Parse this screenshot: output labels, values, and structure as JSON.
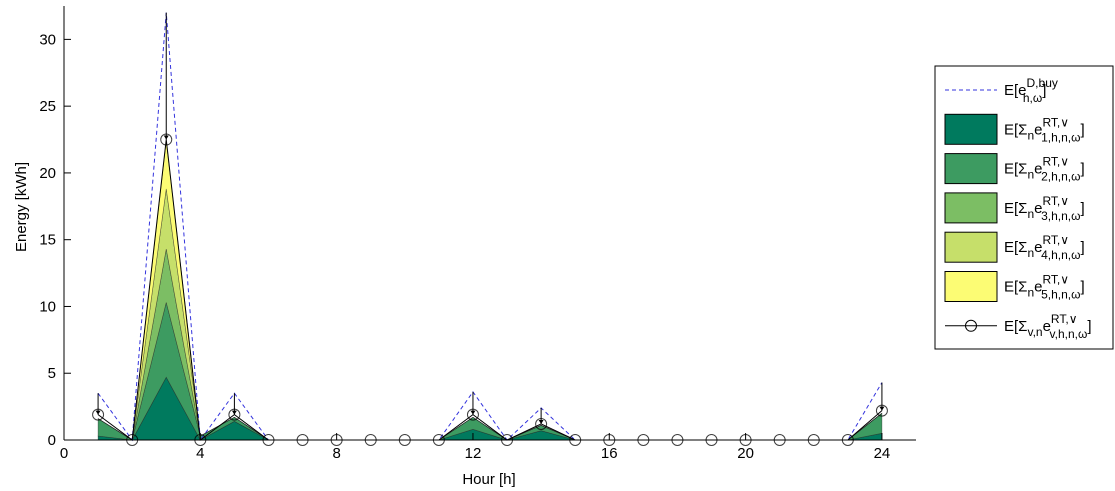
{
  "chart_data": {
    "type": "area",
    "xlabel": "Hour [h]",
    "ylabel": "Energy [kWh]",
    "xlim": [
      0,
      25
    ],
    "ylim": [
      0,
      32.5
    ],
    "xticks": [
      0,
      4,
      8,
      12,
      16,
      20,
      24
    ],
    "yticks": [
      0,
      5,
      10,
      15,
      20,
      25,
      30
    ],
    "x": [
      1,
      2,
      3,
      4,
      5,
      6,
      7,
      8,
      9,
      10,
      11,
      12,
      13,
      14,
      15,
      16,
      17,
      18,
      19,
      20,
      21,
      22,
      23,
      24
    ],
    "stacked_series": [
      {
        "name": "1",
        "color": "#007a5e",
        "values": [
          0.3,
          0,
          4.7,
          0,
          1.4,
          0,
          0,
          0,
          0,
          0,
          0,
          0.8,
          0,
          0.7,
          0,
          0,
          0,
          0,
          0,
          0,
          0,
          0,
          0,
          0.5
        ]
      },
      {
        "name": "2",
        "color": "#3d9b61",
        "values": [
          1.3,
          0,
          5.6,
          0.3,
          0.3,
          0,
          0,
          0,
          0,
          0,
          0,
          0.9,
          0,
          0.4,
          0,
          0,
          0,
          0,
          0,
          0,
          0,
          0,
          0,
          1.5
        ]
      },
      {
        "name": "3",
        "color": "#7cbe64",
        "values": [
          0,
          0,
          4.0,
          0,
          0,
          0,
          0,
          0,
          0,
          0,
          0,
          0,
          0,
          0,
          0,
          0,
          0,
          0,
          0,
          0,
          0,
          0,
          0,
          0
        ]
      },
      {
        "name": "4",
        "color": "#c6df6a",
        "values": [
          0,
          0,
          4.5,
          0,
          0,
          0,
          0,
          0,
          0,
          0,
          0,
          0,
          0,
          0,
          0,
          0,
          0,
          0,
          0,
          0,
          0,
          0,
          0,
          0
        ]
      },
      {
        "name": "5",
        "color": "#fcfc74",
        "values": [
          0,
          0,
          3.6,
          0,
          0,
          0,
          0,
          0,
          0,
          0,
          0,
          0,
          0,
          0,
          0,
          0,
          0,
          0,
          0,
          0,
          0,
          0,
          0,
          0
        ]
      }
    ],
    "buy_line": {
      "color": "#3333dd",
      "values": [
        3.5,
        0,
        32,
        0,
        3.5,
        0,
        0,
        0,
        0,
        0,
        0,
        3.6,
        0,
        2.4,
        0,
        0,
        0,
        0,
        0,
        0,
        0,
        0,
        0,
        4.3
      ]
    },
    "total_markers": {
      "values": [
        1.9,
        0,
        22.5,
        0,
        1.9,
        0,
        0,
        0,
        0,
        0,
        0,
        1.9,
        0,
        1.2,
        0,
        0,
        0,
        0,
        0,
        0,
        0,
        0,
        0,
        2.2
      ],
      "whisker_top": [
        3.5,
        0,
        32,
        0,
        3.5,
        0,
        0,
        0,
        0,
        0,
        0,
        3.6,
        0,
        2.4,
        0,
        0,
        0,
        0,
        0,
        0,
        0,
        0,
        0,
        4.3
      ]
    },
    "legend": {
      "placement": "right",
      "entries": [
        {
          "kind": "line-dashed",
          "base": "E[e",
          "sup": "D,buy",
          "sub": "h,ω",
          "tail": "]"
        },
        {
          "kind": "patch",
          "series": 0,
          "base": "E[Σ",
          "sub1": "n",
          "mid": "e",
          "sup": "RT,∨",
          "sub": "1,h,n,ω",
          "tail": "]"
        },
        {
          "kind": "patch",
          "series": 1,
          "base": "E[Σ",
          "sub1": "n",
          "mid": "e",
          "sup": "RT,∨",
          "sub": "2,h,n,ω",
          "tail": "]"
        },
        {
          "kind": "patch",
          "series": 2,
          "base": "E[Σ",
          "sub1": "n",
          "mid": "e",
          "sup": "RT,∨",
          "sub": "3,h,n,ω",
          "tail": "]"
        },
        {
          "kind": "patch",
          "series": 3,
          "base": "E[Σ",
          "sub1": "n",
          "mid": "e",
          "sup": "RT,∨",
          "sub": "4,h,n,ω",
          "tail": "]"
        },
        {
          "kind": "patch",
          "series": 4,
          "base": "E[Σ",
          "sub1": "n",
          "mid": "e",
          "sup": "RT,∨",
          "sub": "5,h,n,ω",
          "tail": "]"
        },
        {
          "kind": "line-marker",
          "base": "E[Σ",
          "sub1": "v,n",
          "mid": "e",
          "sup": "RT,∨",
          "sub": "v,h,n,ω",
          "tail": "]"
        }
      ]
    }
  }
}
